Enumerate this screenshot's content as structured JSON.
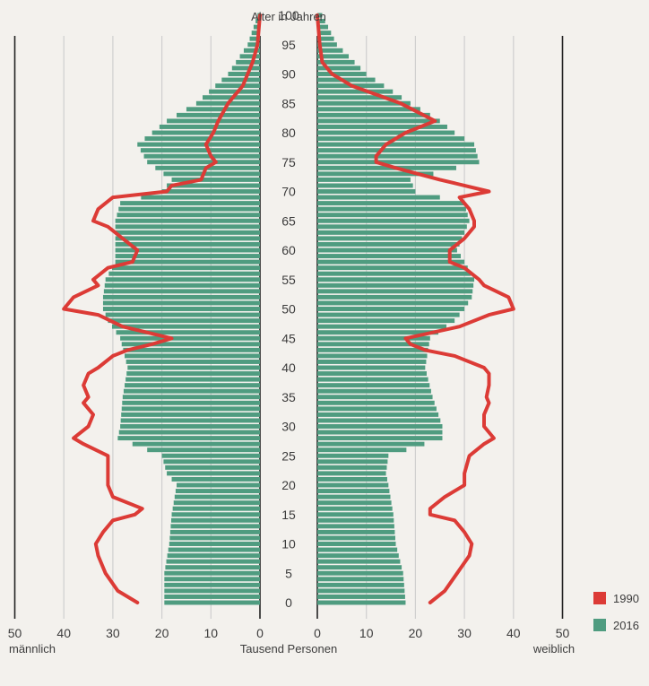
{
  "chart_data": {
    "type": "bar",
    "chart_kind": "population pyramid",
    "title": "Alter in Jahren",
    "xlabel": "Tausend Personen",
    "left_label": "männlich",
    "right_label": "weiblich",
    "xlim": [
      0,
      50
    ],
    "x_ticks": [
      "50",
      "40",
      "30",
      "20",
      "10",
      "0"
    ],
    "x_ticks_right": [
      "0",
      "10",
      "20",
      "30",
      "40",
      "50"
    ],
    "y_ticks": [
      "0",
      "5",
      "10",
      "15",
      "20",
      "25",
      "30",
      "35",
      "40",
      "45",
      "50",
      "55",
      "60",
      "65",
      "70",
      "75",
      "80",
      "85",
      "90",
      "95",
      "100"
    ],
    "ylim": [
      0,
      100
    ],
    "grid": true,
    "legend_position": "bottom-right",
    "legend": [
      {
        "name": "1990",
        "color": "#dc3b36"
      },
      {
        "name": "2016",
        "color": "#4f9c80"
      }
    ],
    "series": [
      {
        "name": "2016",
        "kind": "bars",
        "color": "#4f9c80",
        "ages": [
          0,
          5,
          10,
          15,
          20,
          22,
          25,
          28,
          30,
          35,
          40,
          45,
          48,
          50,
          52,
          55,
          58,
          60,
          65,
          68,
          70,
          72,
          75,
          78,
          80,
          82,
          85,
          90,
          95,
          100
        ],
        "male": [
          19.5,
          19.5,
          18.5,
          18,
          17,
          19,
          20,
          29,
          28.5,
          28,
          27,
          28.5,
          31,
          32,
          32,
          31.5,
          29.5,
          29.5,
          29.5,
          28.5,
          20,
          18,
          23,
          25,
          22,
          19,
          13,
          6.5,
          2.5,
          0.5
        ],
        "female": [
          18,
          17.5,
          16,
          15.5,
          14.5,
          14,
          14.5,
          25.5,
          25.5,
          23.5,
          22,
          23,
          28,
          30,
          31.5,
          32,
          30,
          28.5,
          31,
          30,
          20,
          19,
          33,
          32,
          28,
          25,
          19,
          10,
          4,
          1
        ]
      },
      {
        "name": "1990",
        "kind": "line",
        "color": "#dc3b36",
        "ages": [
          0,
          2,
          5,
          8,
          10,
          12,
          14,
          15,
          16,
          18,
          20,
          22,
          25,
          27,
          28,
          30,
          32,
          34,
          35,
          37,
          39,
          40,
          42,
          43,
          44,
          45,
          47,
          49,
          50,
          52,
          54,
          55,
          57,
          58,
          60,
          62,
          64,
          65,
          67,
          69,
          70,
          71,
          72,
          74,
          75,
          76,
          78,
          80,
          82,
          85,
          88,
          90,
          92,
          95,
          98,
          100
        ],
        "male": [
          25,
          29,
          31.5,
          33,
          33.5,
          32,
          30,
          25.5,
          24,
          30,
          31,
          31,
          31,
          36,
          38,
          35,
          34,
          36,
          35,
          36,
          35,
          33,
          30,
          27,
          22,
          18,
          28,
          33,
          40,
          38,
          33,
          34,
          31,
          26,
          25,
          28,
          31,
          34,
          33,
          30,
          19,
          18,
          12,
          11,
          9,
          10,
          11,
          9.5,
          8.5,
          6.5,
          3.5,
          2.5,
          1.5,
          0.5,
          0.2,
          0
        ],
        "female": [
          23,
          26,
          28.5,
          31,
          31.5,
          30,
          28,
          23,
          23,
          26,
          30,
          30,
          31,
          34,
          36,
          34,
          34,
          35,
          34.5,
          35,
          35,
          34,
          28,
          22,
          19,
          18,
          29,
          35,
          40,
          39,
          34,
          33,
          30,
          27,
          27,
          30,
          32,
          32,
          31,
          29,
          35,
          30,
          25,
          16,
          12,
          12,
          14,
          18,
          24,
          17,
          7,
          3,
          1,
          0.5,
          0.2,
          0
        ]
      }
    ]
  }
}
